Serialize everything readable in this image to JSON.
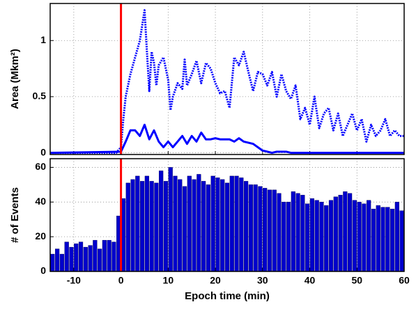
{
  "chart_data": [
    {
      "type": "line",
      "ylabel": "Area (Mkm²)",
      "xlim": [
        -15,
        60
      ],
      "xticks": [
        -10,
        0,
        10,
        20,
        30,
        40,
        50,
        60
      ],
      "ylim": [
        -0.015,
        1.33
      ],
      "yticks": [
        0,
        0.5,
        1
      ],
      "grid": true,
      "vline": 0,
      "vline_color": "#ff0000",
      "series": [
        {
          "color": "#0000ff",
          "style": "dotted",
          "x": [
            -15,
            -1,
            0,
            0.5,
            1,
            2,
            3,
            4,
            5,
            5.5,
            6,
            6.5,
            7,
            7.5,
            8,
            9,
            10,
            10.5,
            11,
            12,
            13,
            13.5,
            14,
            15,
            16,
            17,
            18,
            19,
            20,
            21,
            22,
            23,
            24,
            25,
            26,
            27,
            28,
            29,
            30,
            31,
            32,
            33,
            34,
            35,
            36,
            37,
            38,
            39,
            40,
            41,
            42,
            43,
            44,
            45,
            46,
            47,
            48,
            49,
            50,
            51,
            52,
            53,
            54,
            55,
            56,
            57,
            58,
            59,
            60
          ],
          "values": [
            0,
            0,
            0.05,
            0.3,
            0.5,
            0.7,
            0.85,
            1.0,
            1.27,
            0.9,
            0.55,
            0.9,
            0.8,
            0.6,
            0.78,
            0.85,
            0.65,
            0.38,
            0.5,
            0.62,
            0.57,
            0.83,
            0.6,
            0.7,
            0.82,
            0.62,
            0.8,
            0.75,
            0.62,
            0.53,
            0.55,
            0.4,
            0.85,
            0.78,
            0.9,
            0.72,
            0.55,
            0.72,
            0.7,
            0.6,
            0.72,
            0.5,
            0.7,
            0.55,
            0.48,
            0.6,
            0.3,
            0.4,
            0.25,
            0.5,
            0.22,
            0.35,
            0.4,
            0.2,
            0.35,
            0.15,
            0.25,
            0.35,
            0.2,
            0.3,
            0.1,
            0.25,
            0.15,
            0.2,
            0.3,
            0.15,
            0.2,
            0.15,
            0.15
          ]
        },
        {
          "color": "#0000ff",
          "style": "solid",
          "x": [
            -15,
            0,
            1,
            2,
            3,
            4,
            5,
            6,
            7,
            8,
            9,
            10,
            11,
            12,
            13,
            14,
            15,
            16,
            17,
            18,
            19,
            20,
            21,
            22,
            23,
            24,
            25,
            26,
            28,
            30,
            32,
            33,
            35,
            36,
            60
          ],
          "values": [
            0,
            0.01,
            0.1,
            0.2,
            0.2,
            0.15,
            0.25,
            0.12,
            0.2,
            0.1,
            0.05,
            0.1,
            0.05,
            0.1,
            0.15,
            0.08,
            0.15,
            0.1,
            0.18,
            0.12,
            0.12,
            0.13,
            0.12,
            0.12,
            0.12,
            0.1,
            0.13,
            0.1,
            0.08,
            0.02,
            0,
            0.01,
            0.01,
            0,
            0
          ]
        }
      ]
    },
    {
      "type": "histogram",
      "xlabel": "Epoch time (min)",
      "ylabel": "# of Events",
      "xlim": [
        -15,
        60
      ],
      "xticks": [
        -10,
        0,
        10,
        20,
        30,
        40,
        50,
        60
      ],
      "ylim": [
        0,
        65
      ],
      "yticks": [
        0,
        20,
        40,
        60
      ],
      "grid": true,
      "vline": 0,
      "vline_color": "#ff0000",
      "color": "#0000cc",
      "bins": [
        -15,
        -14,
        -13,
        -12,
        -11,
        -10,
        -9,
        -8,
        -7,
        -6,
        -5,
        -4,
        -3,
        -2,
        -1,
        0,
        1,
        2,
        3,
        4,
        5,
        6,
        7,
        8,
        9,
        10,
        11,
        12,
        13,
        14,
        15,
        16,
        17,
        18,
        19,
        20,
        21,
        22,
        23,
        24,
        25,
        26,
        27,
        28,
        29,
        30,
        31,
        32,
        33,
        34,
        35,
        36,
        37,
        38,
        39,
        40,
        41,
        42,
        43,
        44,
        45,
        46,
        47,
        48,
        49,
        50,
        51,
        52,
        53,
        54,
        55,
        56,
        57,
        58,
        59,
        60
      ],
      "values": [
        10,
        13,
        10,
        17,
        14,
        16,
        17,
        14,
        15,
        18,
        13,
        18,
        18,
        17,
        32,
        42,
        51,
        53,
        55,
        52,
        55,
        52,
        51,
        58,
        52,
        60,
        55,
        53,
        49,
        55,
        53,
        56,
        52,
        50,
        55,
        54,
        53,
        51,
        55,
        55,
        54,
        52,
        50,
        50,
        49,
        48,
        47,
        47,
        45,
        40,
        40,
        46,
        45,
        44,
        39,
        42,
        41,
        40,
        38,
        41,
        43,
        44,
        46,
        45,
        41,
        40,
        39,
        41,
        36,
        38,
        37,
        37,
        36,
        40,
        35
      ]
    }
  ]
}
